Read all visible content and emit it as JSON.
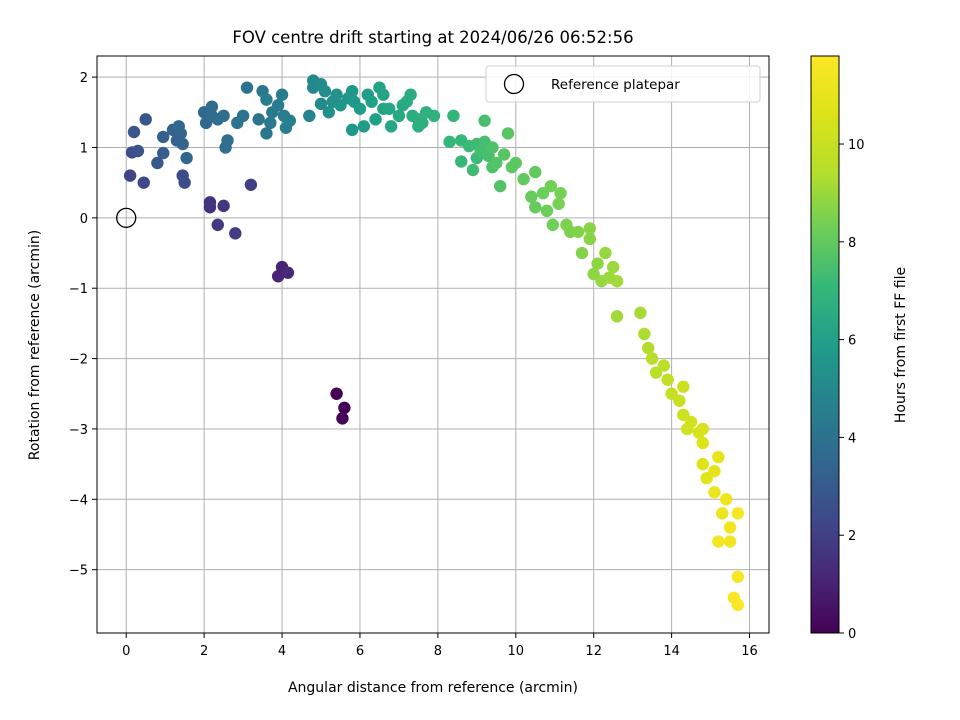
{
  "chart_data": {
    "type": "scatter",
    "title": "FOV centre drift starting at 2024/06/26 06:52:56",
    "xlabel": "Angular distance from reference (arcmin)",
    "ylabel": "Rotation from reference (arcmin)",
    "xlim": [
      -0.75,
      16.5
    ],
    "ylim": [
      -5.9,
      2.3
    ],
    "xticks": [
      "0",
      "2",
      "4",
      "6",
      "8",
      "10",
      "12",
      "14",
      "16"
    ],
    "yticks": [
      "2",
      "1",
      "0",
      "−1",
      "−2",
      "−3",
      "−4",
      "−5"
    ],
    "grid": true,
    "colormap": "viridis",
    "colorbar": {
      "label": "Hours from first FF file",
      "range": [
        0,
        11.8
      ],
      "ticks": [
        "0",
        "2",
        "4",
        "6",
        "8",
        "10"
      ]
    },
    "legend": {
      "location": "top-right",
      "entries": [
        "Reference platepar"
      ]
    },
    "reference_point": {
      "x": 0,
      "y": 0
    },
    "series": [
      {
        "points": [
          [
            5.4,
            -2.5,
            0.05
          ],
          [
            5.6,
            -2.7,
            0.1
          ],
          [
            5.55,
            -2.85,
            0.15
          ],
          [
            4.0,
            -0.7,
            1.0
          ],
          [
            3.9,
            -0.83,
            1.1
          ],
          [
            4.15,
            -0.78,
            1.2
          ],
          [
            2.15,
            0.22,
            1.5
          ],
          [
            2.15,
            0.15,
            1.6
          ],
          [
            2.5,
            0.17,
            1.7
          ],
          [
            2.35,
            -0.1,
            1.8
          ],
          [
            2.8,
            -0.22,
            1.9
          ],
          [
            3.2,
            0.47,
            2.0
          ],
          [
            0.1,
            0.6,
            2.2
          ],
          [
            0.45,
            0.5,
            2.3
          ],
          [
            1.45,
            0.6,
            2.4
          ],
          [
            1.5,
            0.5,
            2.5
          ],
          [
            0.15,
            0.93,
            2.6
          ],
          [
            0.3,
            0.95,
            2.7
          ],
          [
            0.2,
            1.22,
            2.8
          ],
          [
            0.5,
            1.4,
            2.9
          ],
          [
            0.8,
            0.78,
            3.0
          ],
          [
            0.95,
            0.92,
            3.1
          ],
          [
            0.95,
            1.15,
            3.2
          ],
          [
            1.2,
            1.25,
            3.3
          ],
          [
            1.3,
            1.1,
            3.3
          ],
          [
            1.4,
            1.2,
            3.4
          ],
          [
            1.45,
            1.05,
            3.4
          ],
          [
            1.35,
            1.3,
            3.5
          ],
          [
            1.55,
            0.85,
            3.5
          ],
          [
            2.0,
            1.5,
            3.6
          ],
          [
            2.05,
            1.35,
            3.6
          ],
          [
            2.2,
            1.45,
            3.7
          ],
          [
            2.2,
            1.58,
            3.7
          ],
          [
            2.35,
            1.4,
            3.8
          ],
          [
            2.5,
            1.45,
            3.8
          ],
          [
            2.6,
            1.1,
            3.9
          ],
          [
            2.55,
            1.0,
            3.9
          ],
          [
            2.85,
            1.35,
            4.0
          ],
          [
            3.0,
            1.45,
            4.0
          ],
          [
            3.1,
            1.85,
            4.1
          ],
          [
            3.4,
            1.4,
            4.1
          ],
          [
            3.5,
            1.8,
            4.2
          ],
          [
            3.6,
            1.2,
            4.2
          ],
          [
            3.7,
            1.35,
            4.3
          ],
          [
            3.75,
            1.5,
            4.3
          ],
          [
            3.9,
            1.6,
            4.4
          ],
          [
            4.0,
            1.75,
            4.4
          ],
          [
            4.05,
            1.45,
            4.5
          ],
          [
            4.1,
            1.28,
            4.5
          ],
          [
            4.2,
            1.38,
            4.6
          ],
          [
            3.6,
            1.68,
            4.6
          ],
          [
            4.7,
            1.45,
            4.8
          ],
          [
            4.8,
            1.85,
            4.9
          ],
          [
            4.8,
            1.95,
            5.0
          ],
          [
            5.0,
            1.62,
            5.1
          ],
          [
            5.1,
            1.8,
            5.2
          ],
          [
            5.0,
            1.9,
            5.2
          ],
          [
            5.2,
            1.5,
            5.3
          ],
          [
            5.3,
            1.65,
            5.3
          ],
          [
            5.4,
            1.75,
            5.4
          ],
          [
            5.5,
            1.6,
            5.5
          ],
          [
            5.7,
            1.7,
            5.5
          ],
          [
            5.8,
            1.8,
            5.6
          ],
          [
            5.85,
            1.65,
            5.7
          ],
          [
            5.8,
            1.25,
            5.7
          ],
          [
            6.0,
            1.55,
            5.8
          ],
          [
            6.1,
            1.3,
            5.8
          ],
          [
            6.2,
            1.75,
            5.9
          ],
          [
            6.3,
            1.65,
            6.0
          ],
          [
            6.4,
            1.4,
            6.0
          ],
          [
            6.5,
            1.85,
            6.1
          ],
          [
            6.6,
            1.75,
            6.2
          ],
          [
            6.6,
            1.55,
            6.2
          ],
          [
            6.75,
            1.55,
            6.3
          ],
          [
            6.8,
            1.3,
            6.3
          ],
          [
            7.0,
            1.45,
            6.4
          ],
          [
            7.1,
            1.6,
            6.4
          ],
          [
            7.2,
            1.65,
            6.5
          ],
          [
            7.3,
            1.75,
            6.5
          ],
          [
            7.35,
            1.45,
            6.6
          ],
          [
            7.5,
            1.4,
            6.6
          ],
          [
            7.5,
            1.3,
            6.7
          ],
          [
            7.6,
            1.35,
            6.7
          ],
          [
            7.7,
            1.5,
            6.8
          ],
          [
            7.9,
            1.45,
            6.8
          ],
          [
            8.3,
            1.08,
            7.0
          ],
          [
            8.4,
            1.45,
            7.0
          ],
          [
            8.6,
            1.1,
            7.1
          ],
          [
            8.6,
            0.8,
            7.1
          ],
          [
            8.8,
            1.02,
            7.2
          ],
          [
            9.0,
            0.85,
            7.2
          ],
          [
            9.0,
            1.05,
            7.3
          ],
          [
            8.9,
            0.68,
            7.3
          ],
          [
            9.1,
            0.95,
            7.4
          ],
          [
            9.2,
            1.08,
            7.4
          ],
          [
            9.2,
            1.38,
            7.5
          ],
          [
            9.3,
            0.88,
            7.5
          ],
          [
            9.4,
            1.0,
            7.6
          ],
          [
            9.4,
            0.72,
            7.6
          ],
          [
            9.5,
            0.78,
            7.7
          ],
          [
            9.6,
            0.45,
            7.7
          ],
          [
            9.7,
            0.9,
            7.8
          ],
          [
            9.8,
            1.2,
            7.8
          ],
          [
            9.9,
            0.72,
            7.9
          ],
          [
            10.0,
            0.78,
            7.9
          ],
          [
            10.2,
            0.55,
            8.0
          ],
          [
            10.5,
            0.65,
            8.0
          ],
          [
            10.4,
            0.3,
            8.1
          ],
          [
            10.5,
            0.15,
            8.1
          ],
          [
            10.7,
            0.35,
            8.2
          ],
          [
            10.8,
            0.1,
            8.2
          ],
          [
            10.9,
            0.45,
            8.3
          ],
          [
            10.95,
            -0.1,
            8.3
          ],
          [
            11.1,
            0.2,
            8.4
          ],
          [
            11.15,
            0.35,
            8.4
          ],
          [
            11.3,
            -0.1,
            8.5
          ],
          [
            11.4,
            -0.2,
            8.5
          ],
          [
            11.6,
            -0.2,
            8.6
          ],
          [
            11.7,
            -0.5,
            8.6
          ],
          [
            11.9,
            -0.3,
            8.7
          ],
          [
            11.9,
            -0.15,
            8.7
          ],
          [
            12.1,
            -0.65,
            8.8
          ],
          [
            12.0,
            -0.8,
            8.8
          ],
          [
            12.2,
            -0.9,
            8.9
          ],
          [
            12.3,
            -0.5,
            8.9
          ],
          [
            12.4,
            -0.85,
            9.0
          ],
          [
            12.5,
            -0.7,
            9.0
          ],
          [
            12.6,
            -0.9,
            9.1
          ],
          [
            12.6,
            -1.4,
            9.1
          ],
          [
            13.2,
            -1.35,
            9.2
          ],
          [
            13.3,
            -1.65,
            9.3
          ],
          [
            13.4,
            -1.85,
            9.4
          ],
          [
            13.5,
            -2.0,
            9.5
          ],
          [
            13.6,
            -2.2,
            9.6
          ],
          [
            13.8,
            -2.1,
            9.7
          ],
          [
            13.9,
            -2.3,
            9.8
          ],
          [
            14.0,
            -2.5,
            9.9
          ],
          [
            14.2,
            -2.6,
            10.0
          ],
          [
            14.3,
            -2.4,
            10.1
          ],
          [
            14.3,
            -2.8,
            10.1
          ],
          [
            14.4,
            -3.0,
            10.2
          ],
          [
            14.5,
            -2.9,
            10.3
          ],
          [
            14.7,
            -3.05,
            10.4
          ],
          [
            14.8,
            -3.0,
            10.5
          ],
          [
            14.8,
            -3.2,
            10.6
          ],
          [
            14.8,
            -3.5,
            10.7
          ],
          [
            14.9,
            -3.7,
            10.8
          ],
          [
            15.1,
            -3.6,
            10.9
          ],
          [
            15.2,
            -3.4,
            11.0
          ],
          [
            15.1,
            -3.9,
            11.1
          ],
          [
            15.3,
            -4.2,
            11.2
          ],
          [
            15.4,
            -4.0,
            11.3
          ],
          [
            15.5,
            -4.4,
            11.4
          ],
          [
            15.5,
            -4.6,
            11.4
          ],
          [
            15.2,
            -4.6,
            11.5
          ],
          [
            15.7,
            -4.2,
            11.5
          ],
          [
            15.7,
            -5.1,
            11.6
          ],
          [
            15.6,
            -5.4,
            11.7
          ],
          [
            15.7,
            -5.5,
            11.75
          ]
        ]
      }
    ]
  }
}
